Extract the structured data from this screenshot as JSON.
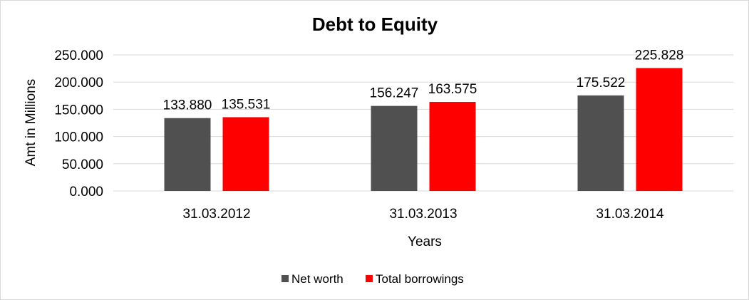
{
  "chart_data": {
    "type": "bar",
    "title": "Debt to Equity",
    "xlabel": "Years",
    "ylabel": "Amt in Millions",
    "categories": [
      "31.03.2012",
      "31.03.2013",
      "31.03.2014"
    ],
    "series": [
      {
        "name": "Net worth",
        "values": [
          133.88,
          156.247,
          175.522
        ],
        "labels": [
          "133.880",
          "156.247",
          "175.522"
        ],
        "color": "#505050"
      },
      {
        "name": "Total borrowings",
        "values": [
          135.531,
          163.575,
          225.828
        ],
        "labels": [
          "135.531",
          "163.575",
          "225.828"
        ],
        "color": "#ff0000"
      }
    ],
    "ylim": [
      0,
      250
    ],
    "yticks": [
      0,
      50,
      100,
      150,
      200,
      250
    ],
    "ytick_labels": [
      "0.000",
      "50.000",
      "100.000",
      "150.000",
      "200.000",
      "250.000"
    ],
    "grid": true,
    "legend_position": "bottom"
  }
}
